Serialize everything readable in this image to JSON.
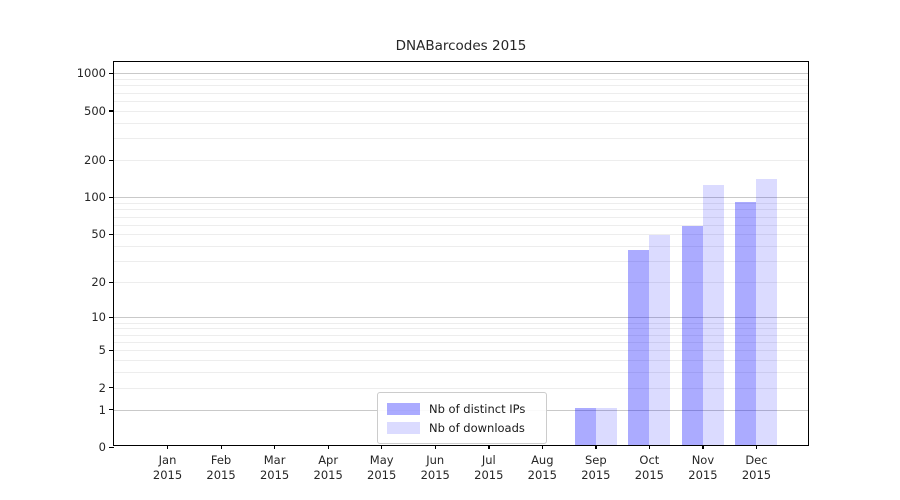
{
  "chart_data": {
    "type": "bar",
    "title": "DNABarcodes 2015",
    "categories": [
      "Jan",
      "Feb",
      "Mar",
      "Apr",
      "May",
      "Jun",
      "Jul",
      "Aug",
      "Sep",
      "Oct",
      "Nov",
      "Dec"
    ],
    "tick_year": "2015",
    "series": [
      {
        "name": "Nb of distinct IPs",
        "color": "rgba(0,0,255,0.33)",
        "values": [
          0,
          0,
          0,
          0,
          0,
          0,
          0,
          0,
          1,
          36,
          56,
          88
        ]
      },
      {
        "name": "Nb of downloads",
        "color": "rgba(0,0,255,0.14)",
        "values": [
          0,
          0,
          0,
          0,
          0,
          0,
          0,
          0,
          1,
          48,
          121,
          135
        ]
      }
    ],
    "yscale": "log1p",
    "ylim": [
      0,
      1236
    ],
    "y_ticks": [
      0,
      1,
      2,
      5,
      10,
      20,
      50,
      100,
      200,
      500,
      1000
    ],
    "y_major_grid": [
      1,
      10,
      100,
      1000
    ],
    "y_minor_grid": [
      2,
      3,
      4,
      5,
      6,
      7,
      8,
      9,
      20,
      30,
      40,
      50,
      60,
      70,
      80,
      90,
      200,
      300,
      400,
      500,
      600,
      700,
      800,
      900
    ],
    "xlabel": "",
    "ylabel": "",
    "grid": true,
    "legend_position": "lower-center-inside"
  },
  "colors": {
    "distinct_ips_bar": "rgba(0,0,255,0.33)",
    "downloads_bar": "rgba(0,0,255,0.14)",
    "grid_major": "#c9c9c9",
    "grid_minor": "#ededed",
    "spine": "#000000"
  }
}
